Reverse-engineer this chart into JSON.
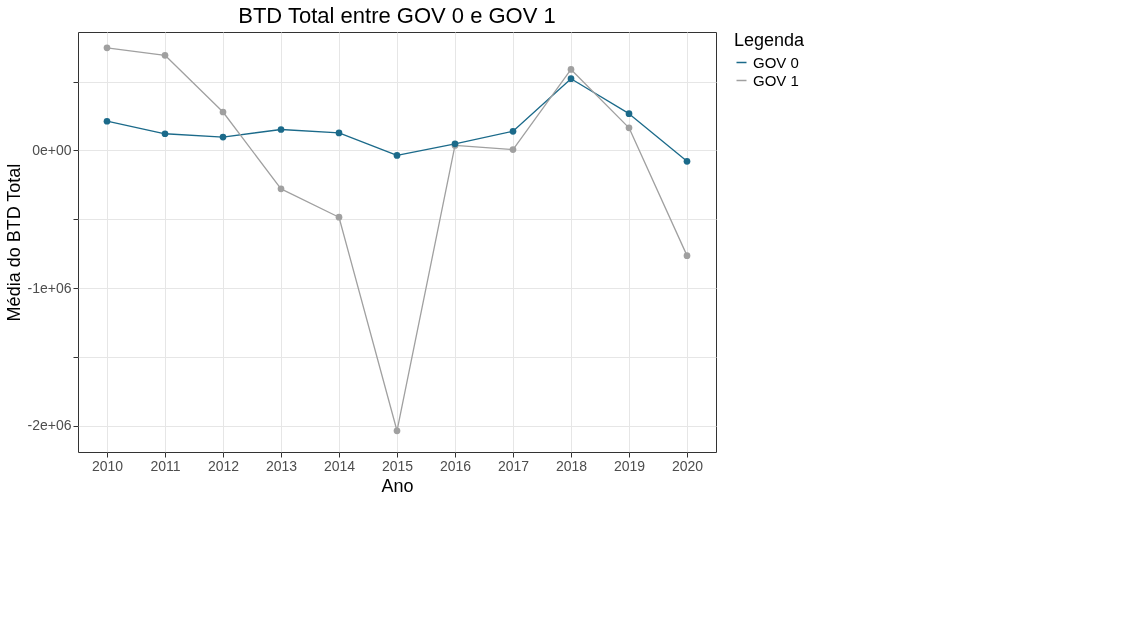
{
  "chart_data": {
    "type": "line",
    "title": "BTD Total entre GOV 0 e GOV 1",
    "xlabel": "Ano",
    "ylabel": "Média do BTD Total",
    "legend_title": "Legenda",
    "categories": [
      "2010",
      "2011",
      "2012",
      "2013",
      "2014",
      "2015",
      "2016",
      "2017",
      "2018",
      "2019",
      "2020"
    ],
    "series": [
      {
        "name": "GOV 0",
        "color": "#1b6a8a",
        "values": [
          212000,
          121000,
          97000,
          152000,
          127000,
          -36000,
          48000,
          139000,
          521000,
          267000,
          -79000
        ]
      },
      {
        "name": "GOV 1",
        "color": "#a0a0a0",
        "values": [
          745000,
          691000,
          279000,
          -279000,
          -485000,
          -2036000,
          36000,
          6000,
          588000,
          164000,
          -764000
        ]
      }
    ],
    "ylim": [
      -2190000,
      860000
    ],
    "yticks": [
      {
        "value": -2000000,
        "label": "-2e+06"
      },
      {
        "value": -1500000,
        "label": null
      },
      {
        "value": -1000000,
        "label": "-1e+06"
      },
      {
        "value": -500000,
        "label": null
      },
      {
        "value": 0,
        "label": "0e+00"
      },
      {
        "value": 500000,
        "label": null
      }
    ],
    "grid": true,
    "legend": "right",
    "marker": "circle",
    "line_style": "solid"
  }
}
